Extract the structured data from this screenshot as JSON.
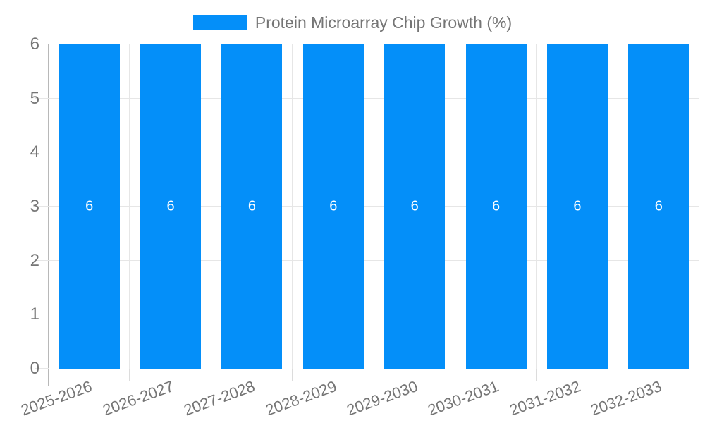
{
  "chart_data": {
    "type": "bar",
    "title": "Protein Microarray Chip Growth (%)",
    "legend": {
      "position": "top",
      "label": "Protein Microarray Chip Growth (%)"
    },
    "categories": [
      "2025-2026",
      "2026-2027",
      "2027-2028",
      "2028-2029",
      "2029-2030",
      "2030-2031",
      "2031-2032",
      "2032-2033"
    ],
    "series": [
      {
        "name": "Protein Microarray Chip Growth (%)",
        "values": [
          6,
          6,
          6,
          6,
          6,
          6,
          6,
          6
        ]
      }
    ],
    "bar_value_labels": [
      "6",
      "6",
      "6",
      "6",
      "6",
      "6",
      "6",
      "6"
    ],
    "y_ticks": [
      "0",
      "1",
      "2",
      "3",
      "4",
      "5",
      "6"
    ],
    "ylim": [
      0,
      6
    ],
    "grid": true,
    "colors": {
      "bar": "#048ff9",
      "grid": "#e6e6e6",
      "axis": "#9e9e9e",
      "text": "#757575",
      "bar_label": "#ffffff"
    }
  }
}
